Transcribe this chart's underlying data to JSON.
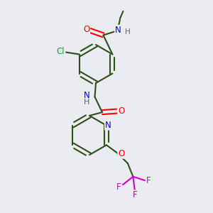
{
  "background_color": "#eaecf2",
  "bond_color": "#2d5016",
  "atom_colors": {
    "O": "#ff0000",
    "N": "#0000ee",
    "Cl": "#00bb00",
    "F": "#cc00cc",
    "H": "#606060",
    "C": "#2d5016"
  },
  "figsize": [
    3.0,
    3.0
  ],
  "dpi": 100,
  "lw": 1.5,
  "fs": 8.5
}
